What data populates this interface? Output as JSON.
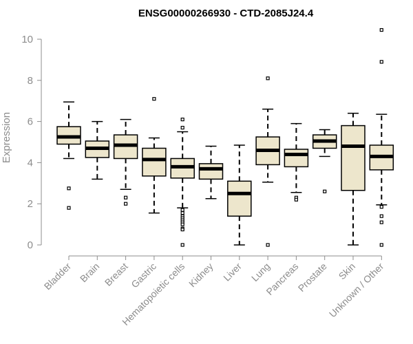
{
  "chart_data": {
    "type": "boxplot",
    "title": "ENSG00000266930 - CTD-2085J24.4",
    "xlabel": "",
    "ylabel": "Expression",
    "ylim": [
      0,
      10.5
    ],
    "yticks": [
      0,
      2,
      4,
      6,
      8,
      10
    ],
    "grid": false,
    "colors": {
      "box_fill": "#ede6cc",
      "stroke": "#000000",
      "axis_text": "#8c8c8c"
    },
    "categories": [
      "Bladder",
      "Brain",
      "Breast",
      "Gastric",
      "Hematopoietic cells",
      "Kidney",
      "Liver",
      "Lung",
      "Pancreas",
      "Prostate",
      "Skin",
      "Unknown / Other"
    ],
    "boxes": [
      {
        "category": "Bladder",
        "min": 4.2,
        "q1": 4.9,
        "median": 5.25,
        "q3": 5.75,
        "max": 6.95,
        "outliers": [
          2.75,
          1.8
        ]
      },
      {
        "category": "Brain",
        "min": 3.2,
        "q1": 4.25,
        "median": 4.7,
        "q3": 5.05,
        "max": 6.0,
        "outliers": []
      },
      {
        "category": "Breast",
        "min": 2.7,
        "q1": 4.2,
        "median": 4.85,
        "q3": 5.35,
        "max": 6.1,
        "outliers": [
          2.3,
          2.0
        ]
      },
      {
        "category": "Gastric",
        "min": 1.55,
        "q1": 3.35,
        "median": 4.15,
        "q3": 4.7,
        "max": 5.2,
        "outliers": [
          7.1
        ]
      },
      {
        "category": "Hematopoietic cells",
        "min": 1.8,
        "q1": 3.25,
        "median": 3.8,
        "q3": 4.2,
        "max": 5.5,
        "outliers": [
          6.1,
          5.7,
          1.7,
          1.55,
          1.4,
          1.3,
          1.2,
          1.1,
          1.0,
          0.8,
          0.75,
          0.0
        ]
      },
      {
        "category": "Kidney",
        "min": 2.25,
        "q1": 3.2,
        "median": 3.7,
        "q3": 3.95,
        "max": 4.8,
        "outliers": []
      },
      {
        "category": "Liver",
        "min": 0.0,
        "q1": 1.4,
        "median": 2.5,
        "q3": 3.1,
        "max": 4.85,
        "outliers": []
      },
      {
        "category": "Lung",
        "min": 3.05,
        "q1": 3.9,
        "median": 4.6,
        "q3": 5.25,
        "max": 6.6,
        "outliers": [
          8.1,
          0.0
        ]
      },
      {
        "category": "Pancreas",
        "min": 2.55,
        "q1": 3.8,
        "median": 4.4,
        "q3": 4.65,
        "max": 5.9,
        "outliers": [
          2.3,
          2.2
        ]
      },
      {
        "category": "Prostate",
        "min": 4.3,
        "q1": 4.7,
        "median": 5.05,
        "q3": 5.35,
        "max": 5.6,
        "outliers": [
          2.6
        ]
      },
      {
        "category": "Skin",
        "min": 0.0,
        "q1": 2.65,
        "median": 4.8,
        "q3": 5.8,
        "max": 6.4,
        "outliers": []
      },
      {
        "category": "Unknown / Other",
        "min": 1.95,
        "q1": 3.65,
        "median": 4.3,
        "q3": 4.85,
        "max": 6.35,
        "outliers": [
          10.45,
          8.9,
          1.85,
          1.4,
          1.1,
          0.0
        ]
      }
    ]
  }
}
